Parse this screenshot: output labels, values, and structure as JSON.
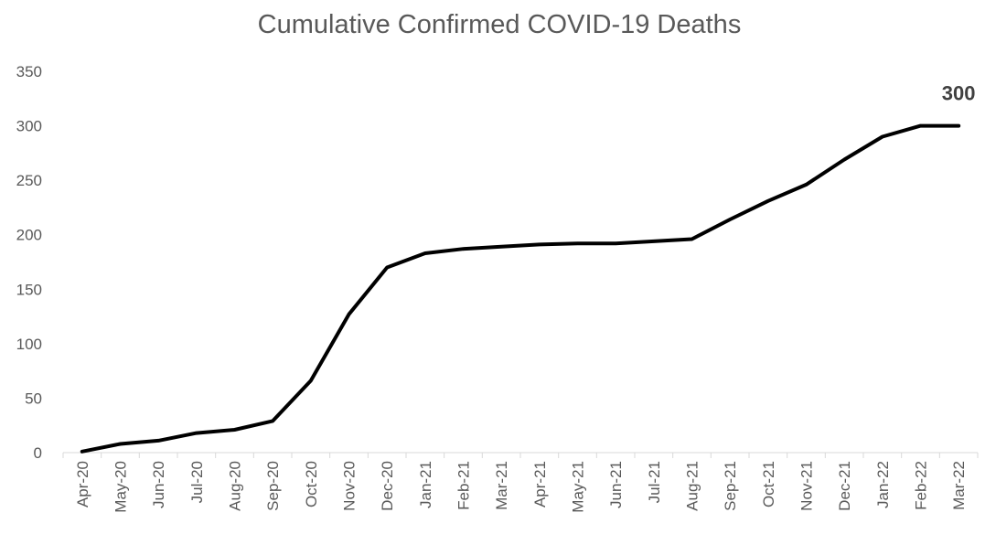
{
  "chart_data": {
    "type": "line",
    "title": "Cumulative Confirmed COVID-19 Deaths",
    "xlabel": "",
    "ylabel": "",
    "categories": [
      "Apr-20",
      "May-20",
      "Jun-20",
      "Jul-20",
      "Aug-20",
      "Sep-20",
      "Oct-20",
      "Nov-20",
      "Dec-20",
      "Jan-21",
      "Feb-21",
      "Mar-21",
      "Apr-21",
      "May-21",
      "Jun-21",
      "Jul-21",
      "Aug-21",
      "Sep-21",
      "Oct-21",
      "Nov-21",
      "Dec-21",
      "Jan-22",
      "Feb-22",
      "Mar-22"
    ],
    "series": [
      {
        "values": [
          1,
          8,
          11,
          18,
          21,
          29,
          66,
          127,
          170,
          183,
          187,
          189,
          191,
          192,
          192,
          194,
          196,
          214,
          231,
          246,
          269,
          290,
          300,
          300
        ],
        "color": "#000000"
      }
    ],
    "ylim": [
      0,
      350
    ],
    "yticks": [
      0,
      50,
      100,
      150,
      200,
      250,
      300,
      350
    ],
    "grid": false,
    "legend": "none",
    "data_labels": [
      {
        "index": 23,
        "text": "300"
      }
    ]
  }
}
